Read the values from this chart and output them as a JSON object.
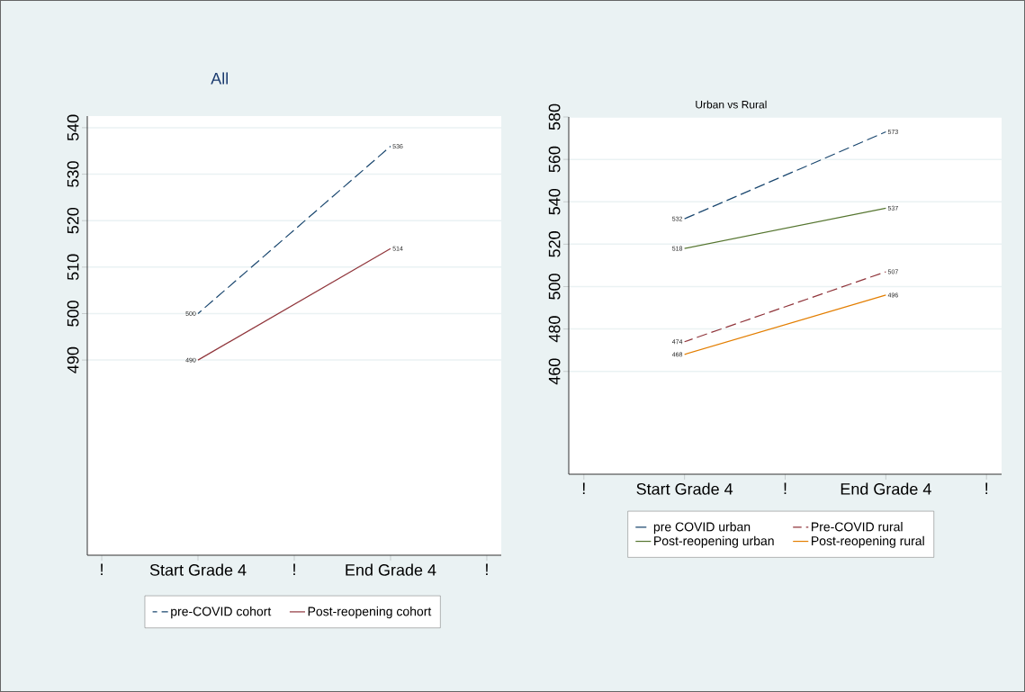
{
  "chart_data": [
    {
      "type": "line",
      "title": "All",
      "categories": [
        "!",
        "Start Grade 4",
        "!",
        "End Grade 4",
        "!"
      ],
      "ylim": [
        448,
        542.5
      ],
      "yticks": [
        490,
        500,
        510,
        520,
        530,
        540
      ],
      "grid": "y",
      "legend": "bottom",
      "data_labels": true,
      "series": [
        {
          "name": "pre-COVID cohort",
          "color": "#1a476f",
          "values": [
            null,
            500,
            null,
            536,
            null
          ],
          "line_style": "dashed"
        },
        {
          "name": "Post-reopening cohort",
          "color": "#90353b",
          "values": [
            null,
            490,
            null,
            514,
            null
          ],
          "line_style": "solid"
        }
      ]
    },
    {
      "type": "line",
      "title": "Urban vs Rural",
      "categories": [
        "!",
        "Start Grade 4",
        "!",
        "End Grade 4",
        "!"
      ],
      "ylim": [
        411.5,
        580
      ],
      "yticks": [
        460,
        480,
        500,
        520,
        540,
        560,
        580
      ],
      "grid": "y",
      "legend": "bottom",
      "data_labels": true,
      "series": [
        {
          "name": "pre COVID urban",
          "color": "#1a476f",
          "values": [
            null,
            532,
            null,
            573,
            null
          ],
          "line_style": "dashed"
        },
        {
          "name": "Pre-COVID rural",
          "color": "#90353b",
          "values": [
            null,
            474,
            null,
            507,
            null
          ],
          "line_style": "dashed"
        },
        {
          "name": "Post-reopening urban",
          "color": "#55752f",
          "values": [
            null,
            518,
            null,
            537,
            null
          ],
          "line_style": "solid"
        },
        {
          "name": "Post-reopening rural",
          "color": "#e37e00",
          "values": [
            null,
            468,
            null,
            496,
            null
          ],
          "line_style": "solid"
        }
      ]
    }
  ]
}
